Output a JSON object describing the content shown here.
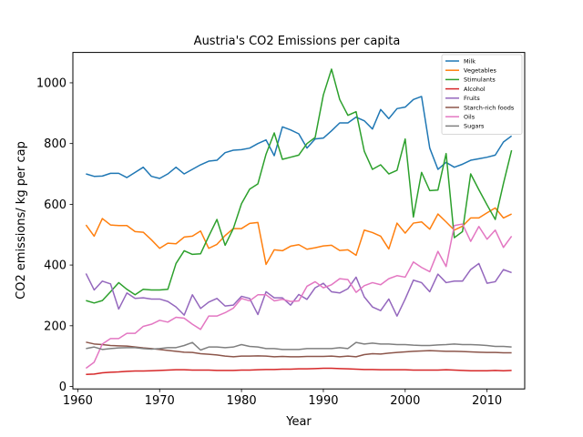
{
  "chart_data": {
    "type": "line",
    "title": "Austria's CO2 Emissions per capita",
    "xlabel": "Year",
    "ylabel": "CO2 emissions/ kg per cap",
    "xlim": [
      1959.4,
      2014.6
    ],
    "ylim": [
      -8,
      1100
    ],
    "xticks": [
      1960,
      1970,
      1980,
      1990,
      2000,
      2010
    ],
    "yticks": [
      0,
      200,
      400,
      600,
      800,
      1000
    ],
    "grid": false,
    "legend_position": "top-right",
    "x": [
      1961,
      1962,
      1963,
      1964,
      1965,
      1966,
      1967,
      1968,
      1969,
      1970,
      1971,
      1972,
      1973,
      1974,
      1975,
      1976,
      1977,
      1978,
      1979,
      1980,
      1981,
      1982,
      1983,
      1984,
      1985,
      1986,
      1987,
      1988,
      1989,
      1990,
      1991,
      1992,
      1993,
      1994,
      1995,
      1996,
      1997,
      1998,
      1999,
      2000,
      2001,
      2002,
      2003,
      2004,
      2005,
      2006,
      2007,
      2008,
      2009,
      2010,
      2011,
      2012,
      2013
    ],
    "series": [
      {
        "name": "Milk",
        "color": "#1f77b4",
        "values": [
          700,
          692,
          693,
          702,
          702,
          688,
          705,
          722,
          692,
          685,
          700,
          722,
          700,
          715,
          730,
          742,
          745,
          770,
          778,
          780,
          785,
          800,
          812,
          760,
          855,
          845,
          832,
          785,
          815,
          818,
          842,
          868,
          868,
          887,
          875,
          848,
          912,
          882,
          915,
          920,
          945,
          955,
          785,
          715,
          738,
          722,
          732,
          745,
          750,
          755,
          762,
          805,
          825
        ]
      },
      {
        "name": "Vegetables",
        "color": "#ff7f0e",
        "values": [
          532,
          495,
          553,
          532,
          530,
          530,
          510,
          508,
          483,
          455,
          472,
          470,
          492,
          495,
          512,
          455,
          468,
          497,
          520,
          520,
          537,
          540,
          402,
          450,
          447,
          462,
          467,
          452,
          457,
          463,
          465,
          448,
          450,
          432,
          515,
          507,
          495,
          453,
          538,
          505,
          538,
          542,
          518,
          568,
          542,
          515,
          528,
          555,
          555,
          572,
          588,
          555,
          568
        ]
      },
      {
        "name": "Stimulants",
        "color": "#2ca02c",
        "values": [
          283,
          275,
          283,
          312,
          342,
          320,
          302,
          320,
          318,
          318,
          320,
          405,
          447,
          435,
          437,
          495,
          550,
          465,
          520,
          602,
          650,
          667,
          765,
          835,
          748,
          755,
          762,
          800,
          820,
          960,
          1045,
          945,
          893,
          905,
          775,
          715,
          730,
          700,
          712,
          815,
          558,
          705,
          645,
          647,
          767,
          490,
          510,
          700,
          648,
          598,
          550,
          668,
          778
        ]
      },
      {
        "name": "Alcohol",
        "color": "#d62728",
        "values": [
          40,
          41,
          45,
          47,
          48,
          50,
          51,
          51,
          52,
          53,
          54,
          55,
          55,
          54,
          54,
          54,
          53,
          53,
          53,
          54,
          54,
          55,
          56,
          56,
          57,
          57,
          58,
          58,
          59,
          60,
          60,
          59,
          58,
          57,
          56,
          56,
          55,
          55,
          55,
          55,
          54,
          54,
          54,
          54,
          55,
          54,
          53,
          52,
          52,
          52,
          53,
          52,
          53
        ]
      },
      {
        "name": "Fruits",
        "color": "#9467bd",
        "values": [
          372,
          318,
          347,
          338,
          255,
          308,
          290,
          292,
          288,
          288,
          280,
          262,
          235,
          302,
          257,
          278,
          290,
          265,
          268,
          297,
          290,
          237,
          312,
          292,
          292,
          268,
          303,
          287,
          325,
          340,
          312,
          308,
          322,
          360,
          295,
          262,
          250,
          288,
          232,
          288,
          350,
          342,
          312,
          370,
          342,
          347,
          347,
          385,
          405,
          340,
          345,
          385,
          375
        ]
      },
      {
        "name": "Starch-rich foods",
        "color": "#8c564b",
        "values": [
          146,
          140,
          138,
          135,
          134,
          133,
          130,
          127,
          125,
          122,
          119,
          116,
          113,
          112,
          108,
          106,
          104,
          100,
          98,
          100,
          100,
          101,
          100,
          98,
          99,
          98,
          98,
          99,
          99,
          99,
          100,
          98,
          100,
          98,
          105,
          108,
          107,
          110,
          112,
          114,
          116,
          117,
          118,
          117,
          116,
          116,
          115,
          114,
          113,
          112,
          112,
          111,
          111
        ]
      },
      {
        "name": "Oils",
        "color": "#e377c2",
        "values": [
          60,
          80,
          140,
          158,
          158,
          175,
          175,
          198,
          205,
          218,
          212,
          228,
          225,
          205,
          188,
          232,
          232,
          243,
          258,
          290,
          282,
          302,
          302,
          282,
          287,
          280,
          282,
          330,
          345,
          325,
          335,
          355,
          352,
          310,
          332,
          342,
          335,
          355,
          365,
          360,
          410,
          392,
          378,
          445,
          395,
          530,
          535,
          478,
          527,
          485,
          515,
          458,
          495
        ]
      },
      {
        "name": "Sugars",
        "color": "#7f7f7f",
        "values": [
          125,
          130,
          122,
          125,
          127,
          128,
          128,
          125,
          123,
          125,
          128,
          128,
          135,
          145,
          120,
          130,
          130,
          128,
          130,
          138,
          132,
          130,
          125,
          125,
          122,
          122,
          122,
          125,
          125,
          125,
          125,
          128,
          125,
          145,
          140,
          143,
          140,
          140,
          138,
          138,
          136,
          135,
          135,
          137,
          138,
          140,
          138,
          138,
          137,
          135,
          132,
          132,
          130
        ]
      }
    ]
  }
}
